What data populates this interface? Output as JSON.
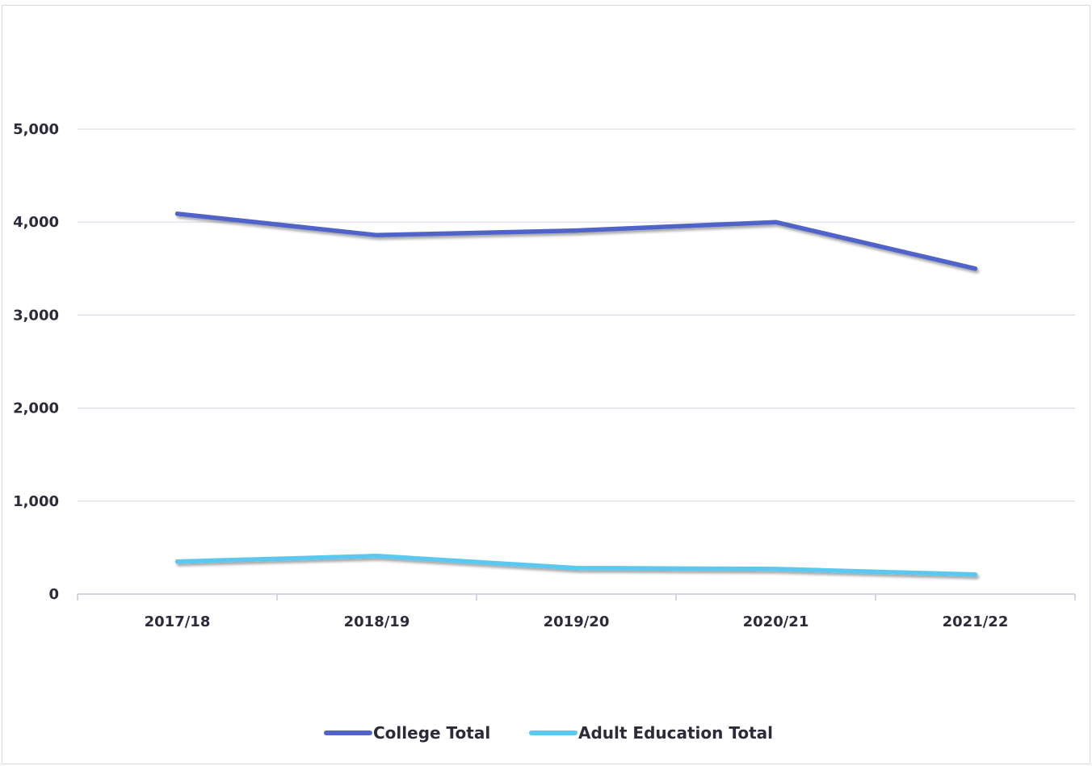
{
  "chart_data": {
    "type": "line",
    "title": "",
    "xlabel": "",
    "ylabel": "",
    "categories": [
      "2017/18",
      "2018/19",
      "2019/20",
      "2020/21",
      "2021/22"
    ],
    "ylim": [
      0,
      5000
    ],
    "yticks": [
      0,
      1000,
      2000,
      3000,
      4000,
      5000
    ],
    "ytick_labels": [
      "0",
      "1,000",
      "2,000",
      "3,000",
      "4,000",
      "5,000"
    ],
    "grid": true,
    "legend_position": "bottom",
    "series": [
      {
        "name": "College Total",
        "color": "#4f63c9",
        "values": [
          4090,
          3860,
          3910,
          4000,
          3500
        ]
      },
      {
        "name": "Adult Education Total",
        "color": "#5bc8f0",
        "values": [
          350,
          410,
          280,
          270,
          210
        ]
      }
    ]
  }
}
